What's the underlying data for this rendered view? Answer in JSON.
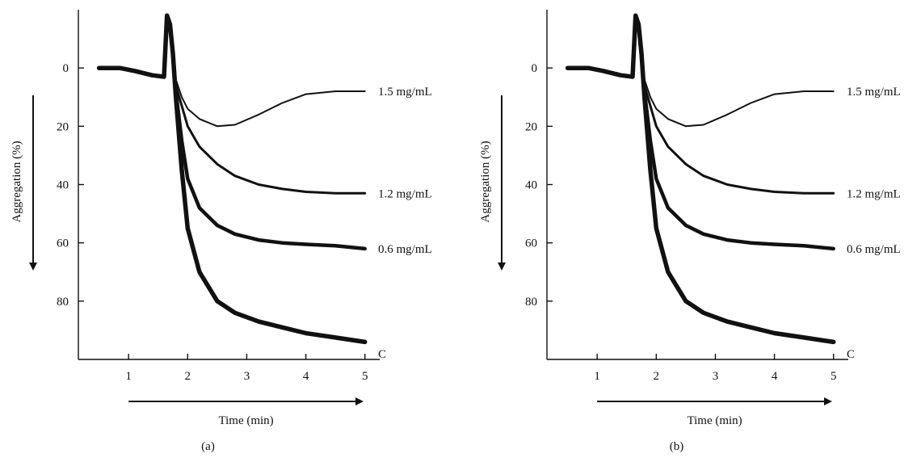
{
  "chart_data": [
    {
      "type": "line",
      "panel_label": "(a)",
      "xlabel": "Time (min)",
      "ylabel": "Aggregation (%)",
      "xlim": [
        0.15,
        5.25
      ],
      "ylim": [
        100,
        -20
      ],
      "y_inverted": true,
      "x_ticks": [
        "1",
        "2",
        "3",
        "4",
        "5"
      ],
      "y_ticks": [
        "0",
        "20",
        "40",
        "60",
        "80"
      ],
      "grid": false,
      "series": [
        {
          "name": "1.5 mg/mL",
          "x": [
            0.5,
            0.85,
            1.1,
            1.4,
            1.6,
            1.65,
            1.7,
            1.75,
            1.8,
            1.9,
            2.0,
            2.2,
            2.5,
            2.8,
            3.2,
            3.6,
            4.0,
            4.5,
            5.0
          ],
          "y": [
            0,
            0,
            1,
            2.5,
            3,
            -18,
            -15,
            -5,
            4,
            10,
            14,
            17.5,
            20,
            19.5,
            16,
            12,
            9,
            8,
            8
          ]
        },
        {
          "name": "1.2 mg/mL",
          "x": [
            0.5,
            0.85,
            1.1,
            1.4,
            1.6,
            1.65,
            1.7,
            1.75,
            1.8,
            1.9,
            2.0,
            2.2,
            2.5,
            2.8,
            3.2,
            3.6,
            4.0,
            4.5,
            5.0
          ],
          "y": [
            0,
            0,
            1,
            2.5,
            3,
            -18,
            -15,
            -5,
            6,
            13,
            20,
            27,
            33,
            37,
            40,
            41.5,
            42.5,
            43,
            43
          ]
        },
        {
          "name": "0.6 mg/mL",
          "x": [
            0.5,
            0.85,
            1.1,
            1.4,
            1.6,
            1.65,
            1.7,
            1.75,
            1.8,
            1.9,
            2.0,
            2.2,
            2.5,
            2.8,
            3.2,
            3.6,
            4.0,
            4.5,
            5.0
          ],
          "y": [
            0,
            0,
            1,
            2.5,
            3,
            -18,
            -15,
            -5,
            8,
            25,
            38,
            48,
            54,
            57,
            59,
            60,
            60.5,
            61,
            62
          ]
        },
        {
          "name": "C",
          "x": [
            0.5,
            0.85,
            1.1,
            1.4,
            1.6,
            1.65,
            1.7,
            1.75,
            1.8,
            1.9,
            2.0,
            2.2,
            2.5,
            2.8,
            3.2,
            3.6,
            4.0,
            4.5,
            5.0
          ],
          "y": [
            0,
            0,
            1,
            2.5,
            3,
            -18,
            -15,
            -5,
            10,
            35,
            55,
            70,
            80,
            84,
            87,
            89,
            91,
            92.5,
            94
          ]
        }
      ]
    },
    {
      "type": "line",
      "panel_label": "(b)",
      "xlabel": "Time (min)",
      "ylabel": "Aggregation (%)",
      "xlim": [
        0.15,
        5.25
      ],
      "ylim": [
        100,
        -20
      ],
      "y_inverted": true,
      "x_ticks": [
        "1",
        "2",
        "3",
        "4",
        "5"
      ],
      "y_ticks": [
        "0",
        "20",
        "40",
        "60",
        "80"
      ],
      "grid": false,
      "series": [
        {
          "name": "1.5 mg/mL",
          "x": [
            0.5,
            0.85,
            1.1,
            1.4,
            1.6,
            1.65,
            1.7,
            1.75,
            1.8,
            1.9,
            2.0,
            2.2,
            2.5,
            2.8,
            3.2,
            3.6,
            4.0,
            4.5,
            5.0
          ],
          "y": [
            0,
            0,
            1,
            2.5,
            3,
            -18,
            -15,
            -5,
            4,
            10,
            14,
            17.5,
            20,
            19.5,
            16,
            12,
            9,
            8,
            8
          ]
        },
        {
          "name": "1.2 mg/mL",
          "x": [
            0.5,
            0.85,
            1.1,
            1.4,
            1.6,
            1.65,
            1.7,
            1.75,
            1.8,
            1.9,
            2.0,
            2.2,
            2.5,
            2.8,
            3.2,
            3.6,
            4.0,
            4.5,
            5.0
          ],
          "y": [
            0,
            0,
            1,
            2.5,
            3,
            -18,
            -15,
            -5,
            6,
            13,
            20,
            27,
            33,
            37,
            40,
            41.5,
            42.5,
            43,
            43
          ]
        },
        {
          "name": "0.6 mg/mL",
          "x": [
            0.5,
            0.85,
            1.1,
            1.4,
            1.6,
            1.65,
            1.7,
            1.75,
            1.8,
            1.9,
            2.0,
            2.2,
            2.5,
            2.8,
            3.2,
            3.6,
            4.0,
            4.5,
            5.0
          ],
          "y": [
            0,
            0,
            1,
            2.5,
            3,
            -18,
            -15,
            -5,
            8,
            25,
            38,
            48,
            54,
            57,
            59,
            60,
            60.5,
            61,
            62
          ]
        },
        {
          "name": "C",
          "x": [
            0.5,
            0.85,
            1.1,
            1.4,
            1.6,
            1.65,
            1.7,
            1.75,
            1.8,
            1.9,
            2.0,
            2.2,
            2.5,
            2.8,
            3.2,
            3.6,
            4.0,
            4.5,
            5.0
          ],
          "y": [
            0,
            0,
            1,
            2.5,
            3,
            -18,
            -15,
            -5,
            10,
            35,
            55,
            70,
            80,
            84,
            87,
            89,
            91,
            92.5,
            94
          ]
        }
      ]
    }
  ]
}
